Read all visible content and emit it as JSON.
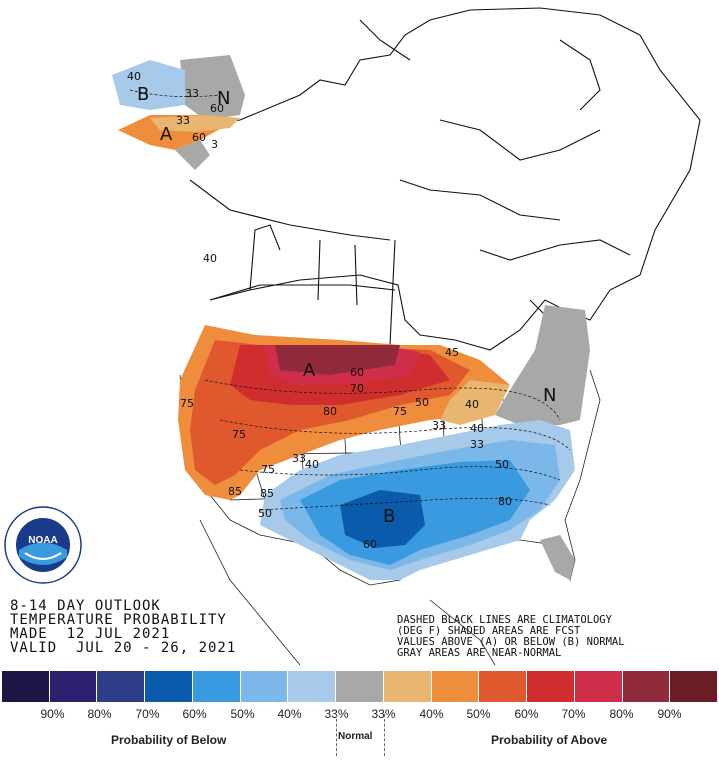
{
  "map": {
    "region_labels": [
      {
        "id": "alaska-below",
        "text": "B"
      },
      {
        "id": "alaska-normal",
        "text": "N"
      },
      {
        "id": "alaska-above",
        "text": "A"
      },
      {
        "id": "plains-above",
        "text": "A"
      },
      {
        "id": "texas-below",
        "text": "B"
      },
      {
        "id": "northeast-normal",
        "text": "N"
      }
    ],
    "contour_labels": [
      "40",
      "33",
      "60",
      "33",
      "33",
      "60",
      "3",
      "33",
      "40",
      "50",
      "60",
      "70",
      "80",
      "75",
      "50",
      "50",
      "75",
      "33",
      "40",
      "60",
      "45",
      "50",
      "40",
      "33",
      "40",
      "33",
      "60",
      "50",
      "70",
      "75",
      "80",
      "40",
      "60",
      "75",
      "85",
      "50",
      "33",
      "33",
      "50",
      "60",
      "70",
      "80",
      "85",
      "50",
      "60"
    ]
  },
  "title": {
    "line1": "8-14 DAY OUTLOOK",
    "line2": "TEMPERATURE PROBABILITY",
    "line3": "MADE  12 JUL 2021",
    "line4": "VALID  JUL 20 - 26, 2021"
  },
  "notes": {
    "line1": "DASHED BLACK LINES ARE CLIMATOLOGY",
    "line2": "(DEG F) SHADED AREAS ARE FCST",
    "line3": "VALUES ABOVE (A) OR BELOW (B) NORMAL",
    "line4": "GRAY AREAS ARE NEAR-NORMAL"
  },
  "legend": {
    "colors": [
      "#1e1646",
      "#2d1e6e",
      "#2e3d8a",
      "#0a5bab",
      "#3a9ae0",
      "#7bb7e8",
      "#a7c9ea",
      "#a8a8a8",
      "#e9b671",
      "#ee8e3d",
      "#e0582d",
      "#d02e2e",
      "#cf2e4a",
      "#912b3c",
      "#6b1c24"
    ],
    "percentages": [
      "90%",
      "80%",
      "70%",
      "60%",
      "50%",
      "40%",
      "33%",
      "33%",
      "40%",
      "50%",
      "60%",
      "70%",
      "80%",
      "90%"
    ],
    "below_label": "Probability of Below",
    "normal_label": "Normal",
    "above_label": "Probability of Above"
  },
  "logo": {
    "text": "NOAA",
    "ring_text": "NATIONAL OCEANIC AND ATMOSPHERIC ADMINISTRATION · U.S. DEPARTMENT OF COMMERCE"
  }
}
